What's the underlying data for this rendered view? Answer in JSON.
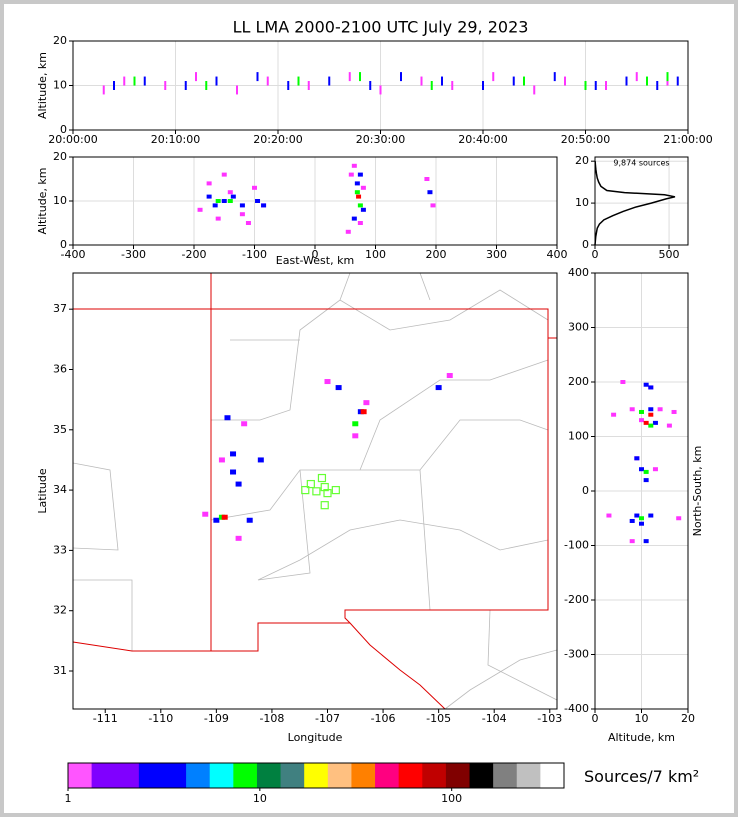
{
  "chart_data": [
    {
      "type": "scatter",
      "title": "LL LMA 2000-2100 UTC July 29, 2023",
      "ylabel": "Altitude, km",
      "grid": true,
      "xlim": [
        0,
        60
      ],
      "ylim": [
        0,
        20
      ],
      "xticks": [
        {
          "value": 0,
          "label": "20:00:00"
        },
        {
          "value": 10,
          "label": "20:10:00"
        },
        {
          "value": 20,
          "label": "20:20:00"
        },
        {
          "value": 30,
          "label": "20:30:00"
        },
        {
          "value": 40,
          "label": "20:40:00"
        },
        {
          "value": 50,
          "label": "20:50:00"
        },
        {
          "value": 60,
          "label": "21:00:00"
        }
      ],
      "yticks": [
        0,
        10,
        20
      ],
      "series": [
        {
          "color": "#ff33ff",
          "x": [
            3,
            5,
            9,
            12,
            16,
            19,
            23,
            27,
            30,
            34,
            37,
            41,
            45,
            48,
            52,
            55,
            58
          ],
          "y": [
            9,
            11,
            10,
            12,
            9,
            11,
            10,
            12,
            9,
            11,
            10,
            12,
            9,
            11,
            10,
            12,
            11
          ]
        },
        {
          "color": "#0000ff",
          "x": [
            4,
            7,
            11,
            14,
            18,
            21,
            25,
            29,
            32,
            36,
            40,
            43,
            47,
            51,
            54,
            57,
            59
          ],
          "y": [
            10,
            11,
            10,
            11,
            12,
            10,
            11,
            10,
            12,
            11,
            10,
            11,
            12,
            10,
            11,
            10,
            11
          ]
        },
        {
          "color": "#00ff00",
          "x": [
            6,
            13,
            22,
            28,
            35,
            44,
            50,
            56,
            58
          ],
          "y": [
            11,
            10,
            11,
            12,
            10,
            11,
            10,
            11,
            12
          ]
        }
      ]
    },
    {
      "type": "scatter",
      "xlabel": "East-West, km",
      "ylabel": "Altitude, km",
      "grid": true,
      "xlim": [
        -400,
        400
      ],
      "ylim": [
        0,
        20
      ],
      "xticks": [
        -400,
        -300,
        -200,
        -100,
        0,
        100,
        200,
        300,
        400
      ],
      "yticks": [
        0,
        10,
        20
      ],
      "series": [
        {
          "color": "#ff33ff",
          "x": [
            -190,
            -175,
            -160,
            -140,
            -120,
            -100,
            -85,
            55,
            60,
            65,
            75,
            80,
            185,
            195,
            -150,
            -110
          ],
          "y": [
            8,
            14,
            6,
            12,
            7,
            13,
            9,
            3,
            16,
            18,
            5,
            13,
            15,
            9,
            16,
            5
          ]
        },
        {
          "color": "#0000ff",
          "x": [
            -175,
            -165,
            -150,
            -135,
            -120,
            -95,
            -85,
            65,
            70,
            75,
            80,
            190
          ],
          "y": [
            11,
            9,
            10,
            11,
            9,
            10,
            9,
            6,
            14,
            16,
            8,
            12
          ]
        },
        {
          "color": "#00ff00",
          "x": [
            -160,
            -140,
            70,
            75
          ],
          "y": [
            10,
            10,
            12,
            9
          ]
        },
        {
          "color": "#ff0000",
          "x": [
            72
          ],
          "y": [
            11
          ]
        }
      ]
    },
    {
      "type": "line",
      "annotation": "9,874 sources",
      "grid": true,
      "xlim": [
        0,
        628
      ],
      "ylim": [
        0,
        21
      ],
      "xticks": [
        0,
        500
      ],
      "yticks": [
        0,
        10,
        20
      ],
      "series": [
        {
          "color": "#000000",
          "x": [
            0,
            5,
            15,
            30,
            60,
            120,
            190,
            270,
            380,
            480,
            540,
            470,
            200,
            80,
            40,
            25,
            15,
            10,
            6,
            3,
            1
          ],
          "y": [
            0,
            2,
            4,
            5,
            6,
            7,
            8,
            9,
            10,
            11,
            11.5,
            12,
            12.5,
            13,
            14,
            15,
            16,
            17,
            18,
            19,
            20
          ]
        }
      ]
    },
    {
      "type": "map",
      "xlabel": "Longitude",
      "ylabel": "Latitude",
      "grid": false,
      "xlim": [
        -111.58,
        -102.87
      ],
      "ylim": [
        30.37,
        37.6
      ],
      "xticks": [
        -111,
        -110,
        -109,
        -108,
        -107,
        -106,
        -105,
        -104,
        -103
      ],
      "yticks": [
        31,
        32,
        33,
        34,
        35,
        36,
        37
      ],
      "series": [
        {
          "color": "#ff33ff",
          "x": [
            -107.0,
            -106.3,
            -104.8,
            -108.9,
            -109.2,
            -108.6,
            -106.5,
            -108.5
          ],
          "y": [
            35.8,
            35.45,
            35.9,
            34.5,
            33.6,
            33.2,
            34.9,
            35.1
          ]
        },
        {
          "color": "#0000ff",
          "x": [
            -106.8,
            -106.4,
            -105.0,
            -108.7,
            -108.6,
            -108.2,
            -109.0,
            -108.4,
            -108.7,
            -108.8
          ],
          "y": [
            35.7,
            35.3,
            35.7,
            34.3,
            34.1,
            34.5,
            33.5,
            33.5,
            34.6,
            35.2
          ]
        },
        {
          "color": "#00ff00",
          "x": [
            -106.5,
            -108.9
          ],
          "y": [
            35.1,
            33.55
          ]
        },
        {
          "color": "#ff0000",
          "x": [
            -106.35,
            -108.85
          ],
          "y": [
            35.3,
            33.55
          ]
        },
        {
          "color": "#66ff33",
          "marker": "open-square",
          "x": [
            -107.1,
            -107.05,
            -107.3,
            -107.2,
            -107.0,
            -106.85,
            -107.4,
            -107.05
          ],
          "y": [
            34.2,
            34.05,
            34.1,
            33.98,
            33.95,
            34.0,
            34.0,
            33.75
          ]
        }
      ]
    },
    {
      "type": "scatter",
      "xlabel": "Altitude, km",
      "ylabel": "North-South, km",
      "grid": true,
      "xlim": [
        0,
        20
      ],
      "ylim": [
        -400,
        400
      ],
      "xticks": [
        0,
        10,
        20
      ],
      "yticks": [
        -400,
        -300,
        -200,
        -100,
        0,
        100,
        200,
        300,
        400
      ],
      "series": [
        {
          "color": "#ff33ff",
          "x": [
            6,
            8,
            10,
            14,
            16,
            4,
            17,
            9,
            13,
            3,
            18,
            8,
            12
          ],
          "y": [
            200,
            150,
            130,
            150,
            120,
            140,
            145,
            60,
            40,
            -45,
            -50,
            -92,
            190
          ]
        },
        {
          "color": "#0000ff",
          "x": [
            11,
            12,
            13,
            9,
            10,
            11,
            12,
            8,
            9,
            10,
            11,
            12
          ],
          "y": [
            195,
            150,
            125,
            60,
            40,
            20,
            -45,
            -55,
            -45,
            -60,
            -92,
            190
          ]
        },
        {
          "color": "#00ff00",
          "x": [
            10,
            12,
            11,
            10
          ],
          "y": [
            145,
            120,
            35,
            -50
          ]
        },
        {
          "color": "#ff0000",
          "x": [
            12,
            11
          ],
          "y": [
            140,
            125
          ]
        }
      ]
    },
    {
      "type": "colorbar",
      "label": "Sources/7 km²",
      "log": true,
      "xlim": [
        1,
        385
      ],
      "xticks": [
        1,
        10,
        100
      ],
      "colors": [
        "#ff55ff",
        "#8000ff",
        "#8000ff",
        "#0000ff",
        "#0000ff",
        "#0080ff",
        "#00ffff",
        "#00ff00",
        "#008040",
        "#408080",
        "#ffff00",
        "#ffc080",
        "#ff8000",
        "#ff0080",
        "#ff0000",
        "#c00000",
        "#800000",
        "#000000",
        "#808080",
        "#c0c0c0",
        "#ffffff"
      ]
    }
  ]
}
